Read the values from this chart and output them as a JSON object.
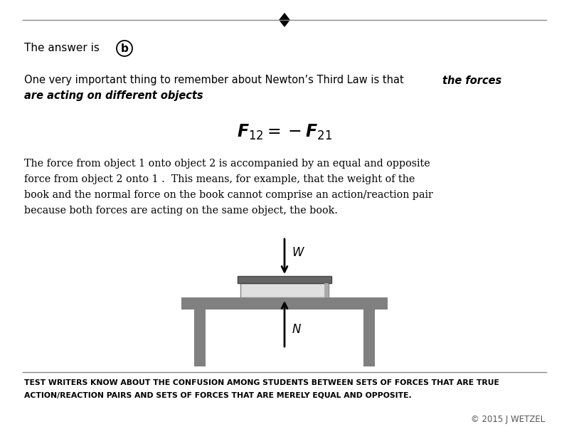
{
  "bg_color": "#ffffff",
  "text_color": "#000000",
  "line_color": "#888888",
  "gray_table": "#808080",
  "gray_dark": "#555555",
  "footer_line1": "TEST WRITERS KNOW ABOUT THE CONFUSION AMONG STUDENTS BETWEEN SETS OF FORCES THAT ARE TRUE",
  "footer_line2": "ACTION/REACTION PAIRS AND SETS OF FORCES THAT ARE MERELY EQUAL AND OPPOSITE.",
  "copyright": "© 2015 J WETZEL"
}
